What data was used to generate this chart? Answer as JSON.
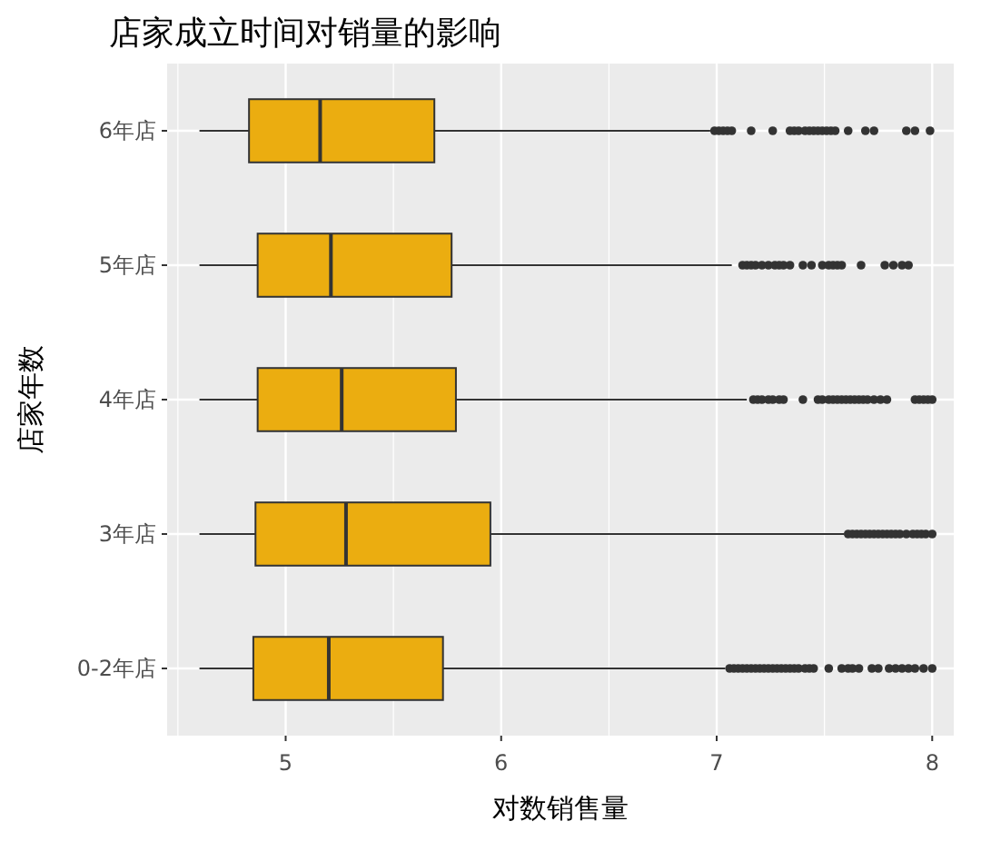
{
  "chart_data": {
    "type": "box",
    "orientation": "horizontal",
    "title": "店家成立时间对销量的影响",
    "xlabel": "对数销售量",
    "ylabel": "店家年数",
    "categories": [
      "6年店",
      "5年店",
      "4年店",
      "3年店",
      "0-2年店"
    ],
    "color": "#ebad10",
    "boxes": [
      {
        "low": 4.6,
        "q1": 4.83,
        "median": 5.16,
        "q3": 5.69,
        "high": 6.97,
        "outliers": [
          6.99,
          7.01,
          7.03,
          7.05,
          7.07,
          7.16,
          7.26,
          7.34,
          7.36,
          7.38,
          7.41,
          7.43,
          7.45,
          7.47,
          7.49,
          7.51,
          7.53,
          7.55,
          7.61,
          7.69,
          7.73,
          7.88,
          7.92,
          7.99
        ]
      },
      {
        "low": 4.6,
        "q1": 4.87,
        "median": 5.21,
        "q3": 5.77,
        "high": 7.07,
        "outliers": [
          7.12,
          7.14,
          7.16,
          7.18,
          7.21,
          7.24,
          7.27,
          7.29,
          7.31,
          7.34,
          7.4,
          7.44,
          7.49,
          7.52,
          7.54,
          7.56,
          7.58,
          7.67,
          7.78,
          7.82,
          7.86,
          7.89
        ]
      },
      {
        "low": 4.6,
        "q1": 4.87,
        "median": 5.26,
        "q3": 5.79,
        "high": 7.14,
        "outliers": [
          7.17,
          7.19,
          7.21,
          7.24,
          7.26,
          7.29,
          7.31,
          7.4,
          7.47,
          7.49,
          7.52,
          7.54,
          7.56,
          7.58,
          7.6,
          7.62,
          7.64,
          7.66,
          7.68,
          7.7,
          7.73,
          7.76,
          7.79,
          7.92,
          7.94,
          7.96,
          7.98,
          8.0
        ]
      },
      {
        "low": 4.6,
        "q1": 4.86,
        "median": 5.28,
        "q3": 5.95,
        "high": 7.59,
        "outliers": [
          7.61,
          7.63,
          7.65,
          7.67,
          7.69,
          7.71,
          7.73,
          7.75,
          7.77,
          7.79,
          7.81,
          7.83,
          7.85,
          7.88,
          7.91,
          7.93,
          7.95,
          7.97,
          8.0
        ]
      },
      {
        "low": 4.6,
        "q1": 4.85,
        "median": 5.2,
        "q3": 5.73,
        "high": 7.04,
        "outliers": [
          7.06,
          7.08,
          7.1,
          7.12,
          7.14,
          7.16,
          7.18,
          7.2,
          7.22,
          7.24,
          7.26,
          7.28,
          7.3,
          7.32,
          7.34,
          7.36,
          7.38,
          7.41,
          7.43,
          7.45,
          7.52,
          7.58,
          7.61,
          7.63,
          7.66,
          7.72,
          7.75,
          7.8,
          7.83,
          7.86,
          7.89,
          7.92,
          7.96,
          8.0
        ]
      }
    ],
    "xlim": [
      4.45,
      8.1
    ],
    "xticks": [
      5,
      6,
      7,
      8
    ],
    "grid": true
  }
}
